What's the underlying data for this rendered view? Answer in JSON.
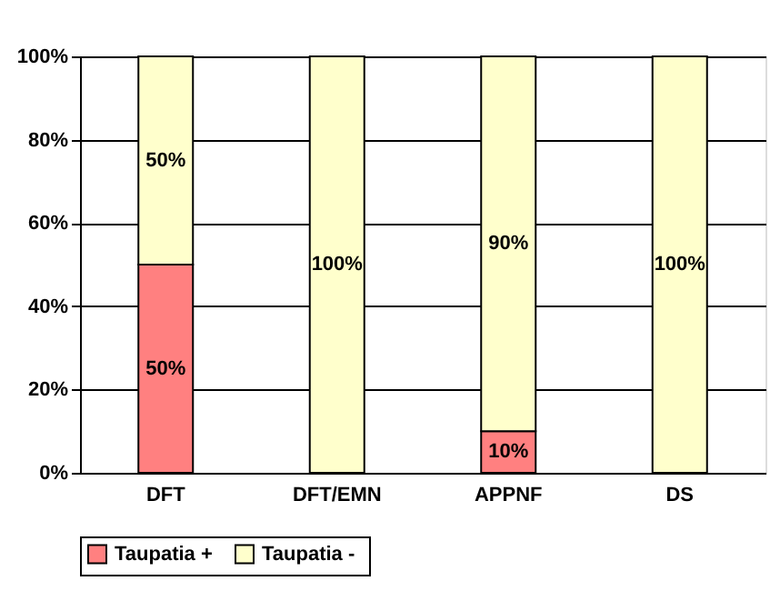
{
  "chart_data": {
    "type": "bar",
    "stacked": true,
    "categories": [
      "DFT",
      "DFT/EMN",
      "APPNF",
      "DS"
    ],
    "series": [
      {
        "name": "Taupatia +",
        "color": "#ff8080",
        "values": [
          50,
          0,
          10,
          0
        ],
        "value_labels": [
          "50%",
          null,
          "10%",
          null
        ]
      },
      {
        "name": "Taupatia  -",
        "color": "#ffffcc",
        "values": [
          50,
          100,
          90,
          100
        ],
        "value_labels": [
          "50%",
          "100%",
          "90%",
          "100%"
        ]
      }
    ],
    "ylim": [
      0,
      100
    ],
    "yticks": [
      {
        "value": 0,
        "label": "0%"
      },
      {
        "value": 20,
        "label": "20%"
      },
      {
        "value": 40,
        "label": "40%"
      },
      {
        "value": 60,
        "label": "60%"
      },
      {
        "value": 80,
        "label": "80%"
      },
      {
        "value": 100,
        "label": "100%"
      }
    ],
    "grid": "y",
    "legend": "bottom"
  }
}
